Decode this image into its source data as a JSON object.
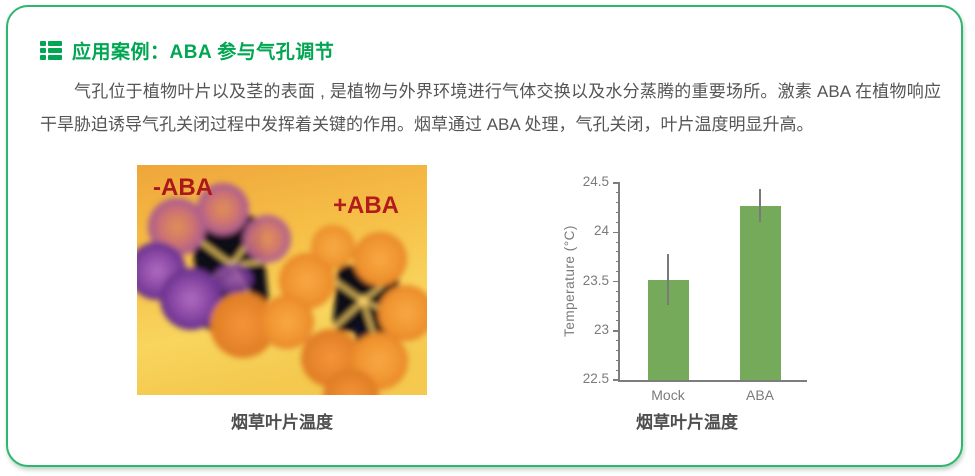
{
  "card": {
    "title": "应用案例：ABA 参与气孔调节",
    "body": "气孔位于植物叶片以及茎的表面 , 是植物与外界环境进行气体交换以及水分蒸腾的重要场所。激素 ABA 在植物响应干旱胁迫诱导气孔关闭过程中发挥着关键的作用。烟草通过 ABA 处理，气孔关闭，叶片温度明显升高。"
  },
  "thermal": {
    "label_minus": "-ABA",
    "label_plus": "+ABA",
    "caption": "烟草叶片温度"
  },
  "chart": {
    "caption": "烟草叶片温度"
  },
  "chart_data": {
    "type": "bar",
    "title": "",
    "categories": [
      "Mock",
      "ABA"
    ],
    "values": [
      23.52,
      24.27
    ],
    "errors": [
      0.26,
      0.17
    ],
    "xlabel": "",
    "ylabel": "Temperature (°C)",
    "ylim": [
      22.5,
      24.5
    ],
    "yticks": [
      22.5,
      23,
      23.5,
      24,
      24.5
    ],
    "minor_tick_step": 0.1,
    "grid": "off",
    "legend": "none",
    "bar_color": "#76aa5b",
    "error_color": "#7a7a7a",
    "axis_color": "#7d7d7d",
    "tick_label_color": "#7b7b7b"
  },
  "colors": {
    "accent_green": "#00a651",
    "border_green": "#2eb56e",
    "body_text": "#555555",
    "thermal_label_red": "#aa171c"
  }
}
